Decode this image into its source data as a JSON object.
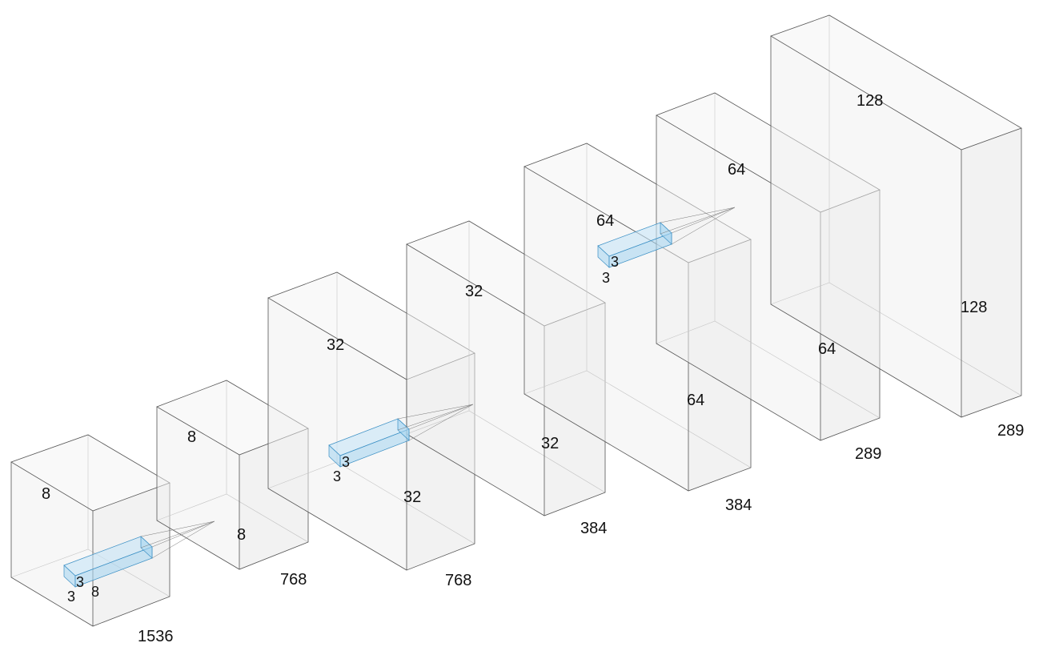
{
  "layers": [
    {
      "depth": "8",
      "height": "8",
      "width": "1536"
    },
    {
      "depth": "8",
      "height": "8",
      "width": "768"
    },
    {
      "depth": "32",
      "height": "32",
      "width": "768"
    },
    {
      "depth": "32",
      "height": "32",
      "width": "384"
    },
    {
      "depth": "64",
      "height": "64",
      "width": "384"
    },
    {
      "depth": "64",
      "height": "64",
      "width": "289"
    },
    {
      "depth": "128",
      "height": "128",
      "width": "289"
    }
  ],
  "kernels": [
    {
      "a": "3",
      "b": "3",
      "c": "8"
    },
    {
      "a": "3",
      "b": "3"
    },
    {
      "a": "3",
      "b": "3"
    }
  ]
}
